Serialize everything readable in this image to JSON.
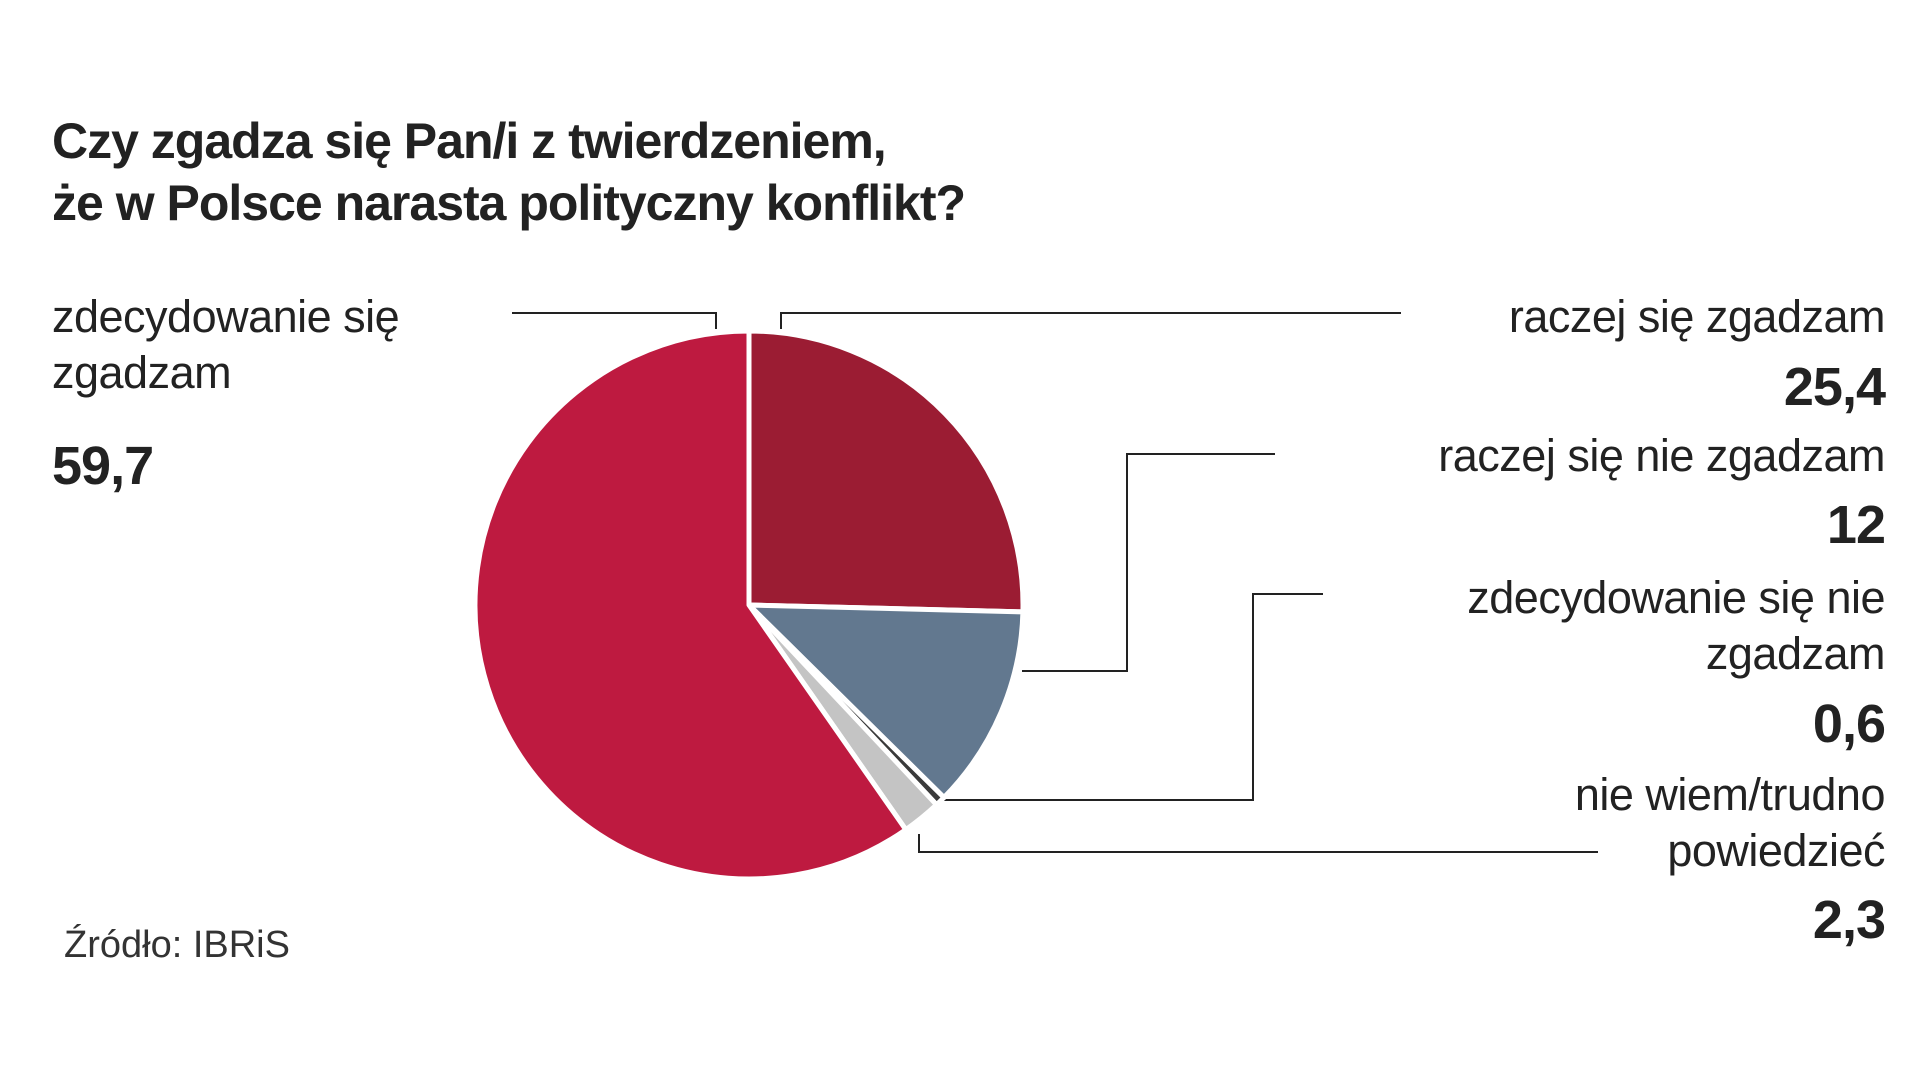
{
  "chart_data": {
    "type": "pie",
    "title": "Czy zgadza się Pan/i z twierdzeniem,\nże w Polsce narasta polityczny konflikt?",
    "categories": [
      "raczej się zgadzam",
      "raczej się nie zgadzam",
      "zdecydowanie się nie\nzgadzam",
      "nie wiem/trudno\npowiedzieć",
      "zdecydowanie się\nzgadzam"
    ],
    "values": [
      25.4,
      12,
      0.6,
      2.3,
      59.7
    ],
    "value_labels": [
      "25,4",
      "12",
      "0,6",
      "2,3",
      "59,7"
    ],
    "colors": [
      "#9b1c33",
      "#62788f",
      "#3a3a3a",
      "#c4c4c4",
      "#be1a40"
    ],
    "source": "Źródło: IBRiS"
  }
}
